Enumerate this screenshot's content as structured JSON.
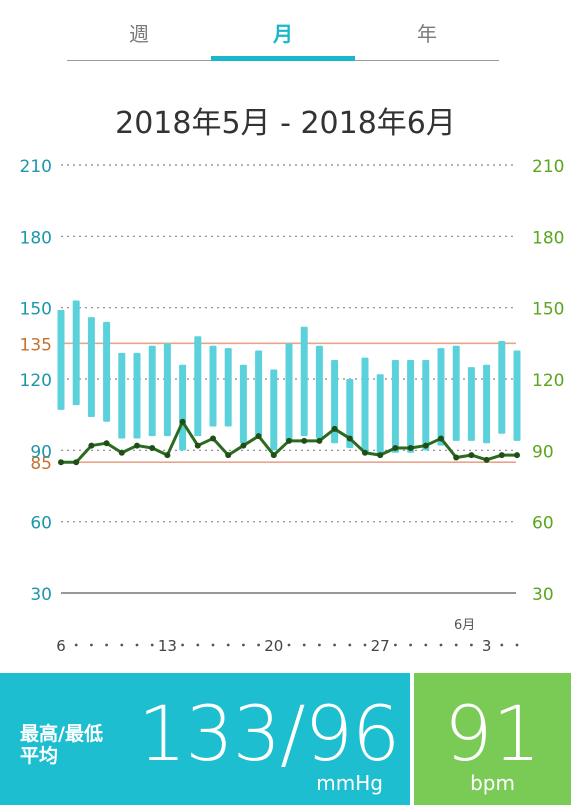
{
  "tabs": [
    {
      "label": "週",
      "active": false
    },
    {
      "label": "月",
      "active": true
    },
    {
      "label": "年",
      "active": false
    }
  ],
  "range_title": "2018年5月 - 2018年6月",
  "chart_data": {
    "type": "bar",
    "y_ticks": [
      30,
      60,
      90,
      120,
      150,
      180,
      210
    ],
    "ylim": [
      30,
      210
    ],
    "bp_reference_lines": [
      {
        "value": 135,
        "label": "135",
        "color": "#e8a58a"
      },
      {
        "value": 85,
        "label": "85",
        "color": "#e8a58a"
      }
    ],
    "x_tick_labels": [
      {
        "index": 0,
        "label": "6"
      },
      {
        "index": 7,
        "label": "13"
      },
      {
        "index": 14,
        "label": "20"
      },
      {
        "index": 21,
        "label": "27"
      },
      {
        "index": 28,
        "label": "3"
      }
    ],
    "month_marker": {
      "index": 28,
      "label": "6月"
    },
    "series": [
      {
        "kind": "bp_range",
        "color": "#5bd1dc",
        "high": [
          149,
          153,
          146,
          144,
          131,
          131,
          134,
          135,
          126,
          138,
          134,
          133,
          126,
          132,
          124,
          135,
          142,
          134,
          128,
          120,
          129,
          122,
          128,
          128,
          128,
          133,
          134,
          125,
          126,
          136,
          132
        ],
        "low": [
          107,
          109,
          104,
          102,
          95,
          95,
          96,
          96,
          90,
          96,
          100,
          100,
          93,
          96,
          90,
          94,
          96,
          95,
          93,
          91,
          89,
          88,
          89,
          89,
          90,
          92,
          94,
          94,
          93,
          97,
          94
        ]
      },
      {
        "kind": "pulse",
        "color": "#2b6a21",
        "values": [
          85,
          85,
          92,
          93,
          89,
          92,
          91,
          88,
          102,
          92,
          95,
          88,
          92,
          96,
          88,
          94,
          94,
          94,
          99,
          95,
          89,
          88,
          91,
          91,
          92,
          95,
          87,
          88,
          86,
          88,
          88
        ]
      }
    ]
  },
  "summary": {
    "avg_label_line1": "最高/最低",
    "avg_label_line2": "平均",
    "bp_value": "133/96",
    "bp_unit": "mmHg",
    "pulse_value": "91",
    "pulse_unit": "bpm",
    "bp_color": "#1dbecf",
    "pulse_color": "#7acb55"
  }
}
